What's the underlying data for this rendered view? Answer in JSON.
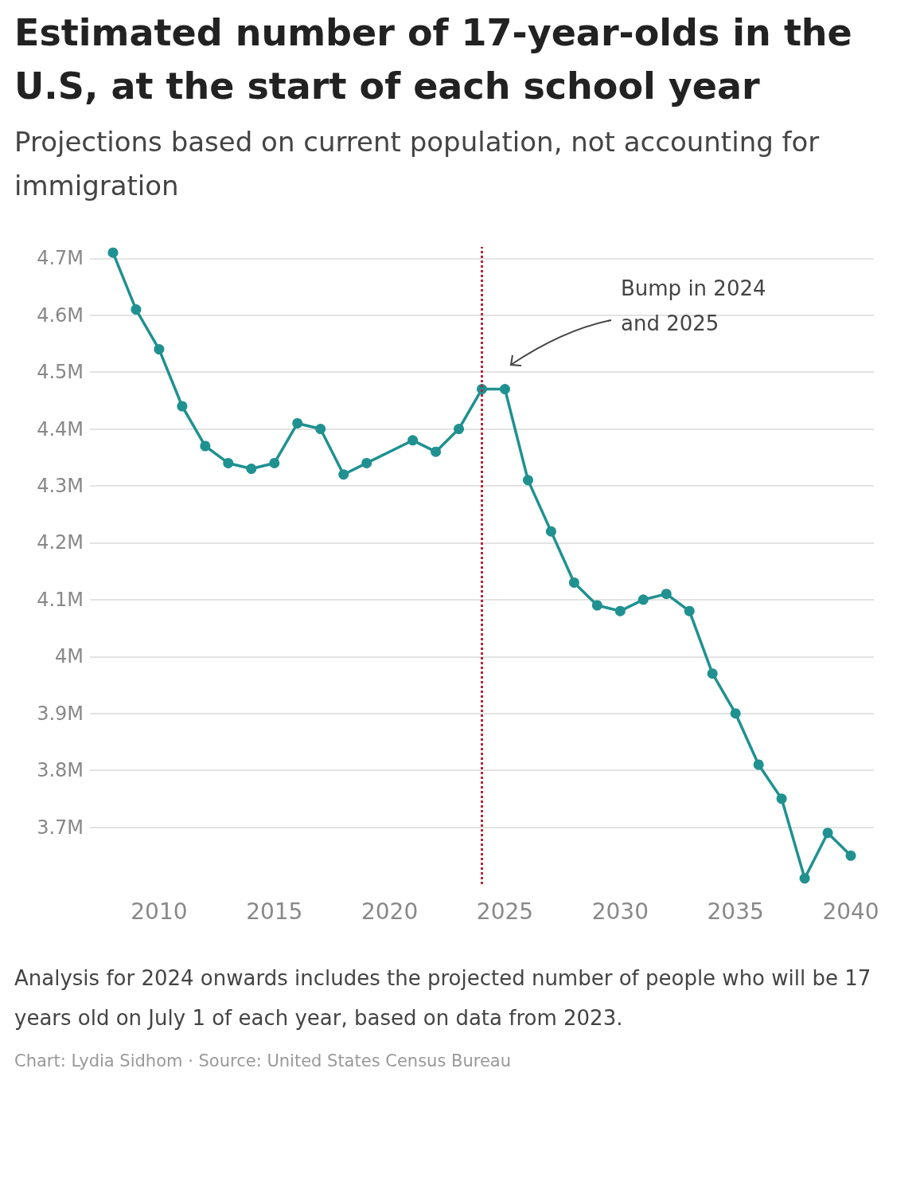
{
  "chart_data": {
    "type": "line",
    "title": "Estimated number of 17-year-olds in the U.S, at the start of each school year",
    "subtitle": "Projections based on current population, not accounting for immigration",
    "x": [
      2008,
      2009,
      2010,
      2011,
      2012,
      2013,
      2014,
      2015,
      2016,
      2017,
      2018,
      2019,
      2021,
      2022,
      2023,
      2024,
      2025,
      2026,
      2027,
      2028,
      2029,
      2030,
      2031,
      2032,
      2033,
      2034,
      2035,
      2036,
      2037,
      2038,
      2039,
      2040
    ],
    "series": [
      {
        "color": "#1f9190",
        "values": [
          4.71,
          4.61,
          4.54,
          4.44,
          4.37,
          4.34,
          4.33,
          4.34,
          4.41,
          4.4,
          4.32,
          4.34,
          4.38,
          4.36,
          4.4,
          4.47,
          4.47,
          4.31,
          4.22,
          4.13,
          4.09,
          4.08,
          4.1,
          4.11,
          4.08,
          3.97,
          3.9,
          3.81,
          3.75,
          3.61,
          3.69,
          3.65
        ]
      }
    ],
    "xlim": [
      2007,
      2041
    ],
    "xticks": [
      2010,
      2015,
      2020,
      2025,
      2030,
      2035,
      2040
    ],
    "ylim": [
      3.6,
      4.72
    ],
    "yticks": [
      {
        "value": 3.7,
        "label": "3.7M"
      },
      {
        "value": 3.8,
        "label": "3.8M"
      },
      {
        "value": 3.9,
        "label": "3.9M"
      },
      {
        "value": 4.0,
        "label": "4M"
      },
      {
        "value": 4.1,
        "label": "4.1M"
      },
      {
        "value": 4.2,
        "label": "4.2M"
      },
      {
        "value": 4.3,
        "label": "4.3M"
      },
      {
        "value": 4.4,
        "label": "4.4M"
      },
      {
        "value": 4.5,
        "label": "4.5M"
      },
      {
        "value": 4.6,
        "label": "4.6M"
      },
      {
        "value": 4.7,
        "label": "4.7M"
      }
    ],
    "ref_lines": [
      {
        "axis": "x",
        "value": 2024,
        "color": "#b0283a",
        "line_style": "dotted"
      }
    ],
    "annotations": [
      "Bump in 2024\nand 2025",
      "Analysis for 2024 onwards includes the projected number of people who will be 17 years old on July 1 of each year, based on data from 2023.",
      "Chart: Lydia Sidhom · Source: United States Census Bureau"
    ],
    "grid": "y",
    "marker": "circle",
    "line_style": "solid"
  }
}
